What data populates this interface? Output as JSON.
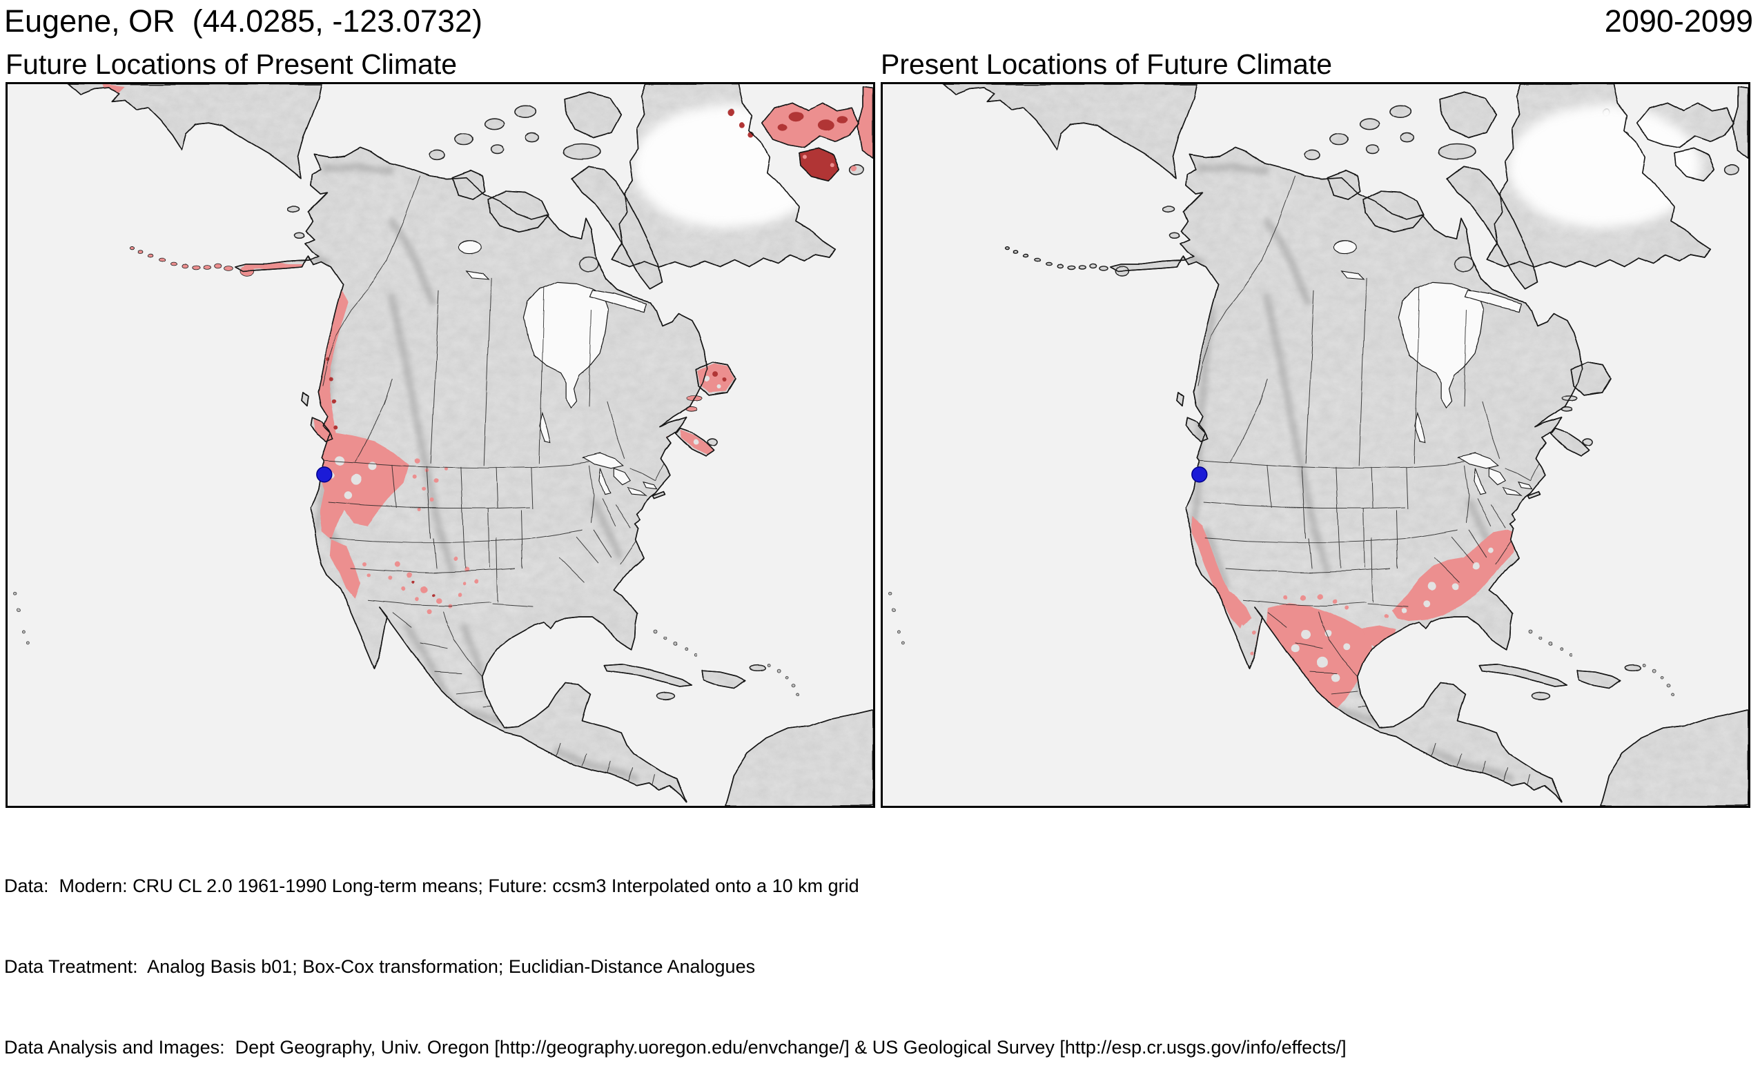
{
  "header": {
    "title": "Eugene, OR  (44.0285, -123.0732)",
    "period": "2090-2099"
  },
  "panels": {
    "left": {
      "subtitle": "Future Locations of Present Climate"
    },
    "right": {
      "subtitle": "Present Locations of Future Climate"
    }
  },
  "footer": {
    "lines": [
      "Data:  Modern: CRU CL 2.0 1961-1990 Long-term means; Future: ccsm3 Interpolated onto a 10 km grid",
      "Data Treatment:  Analog Basis b01; Box-Cox transformation; Euclidian-Distance Analogues",
      "Data Analysis and Images:  Dept Geography, Univ. Oregon [http://geography.uoregon.edu/envchange/] & US Geological Survey [http://esp.cr.usgs.gov/info/effects/]"
    ]
  },
  "map": {
    "region": "North America",
    "marker": "Eugene, OR location dot"
  },
  "colors": {
    "ocean": "#f2f2f2",
    "land": "#e3e3e3",
    "lake": "#fafafa",
    "outline": "#141414",
    "border_line": "#222222",
    "analog_light": "#ec8f8f",
    "analog_dark": "#b13434",
    "marker_blue": "#1b1bd7",
    "marker_edge": "#00008b"
  }
}
